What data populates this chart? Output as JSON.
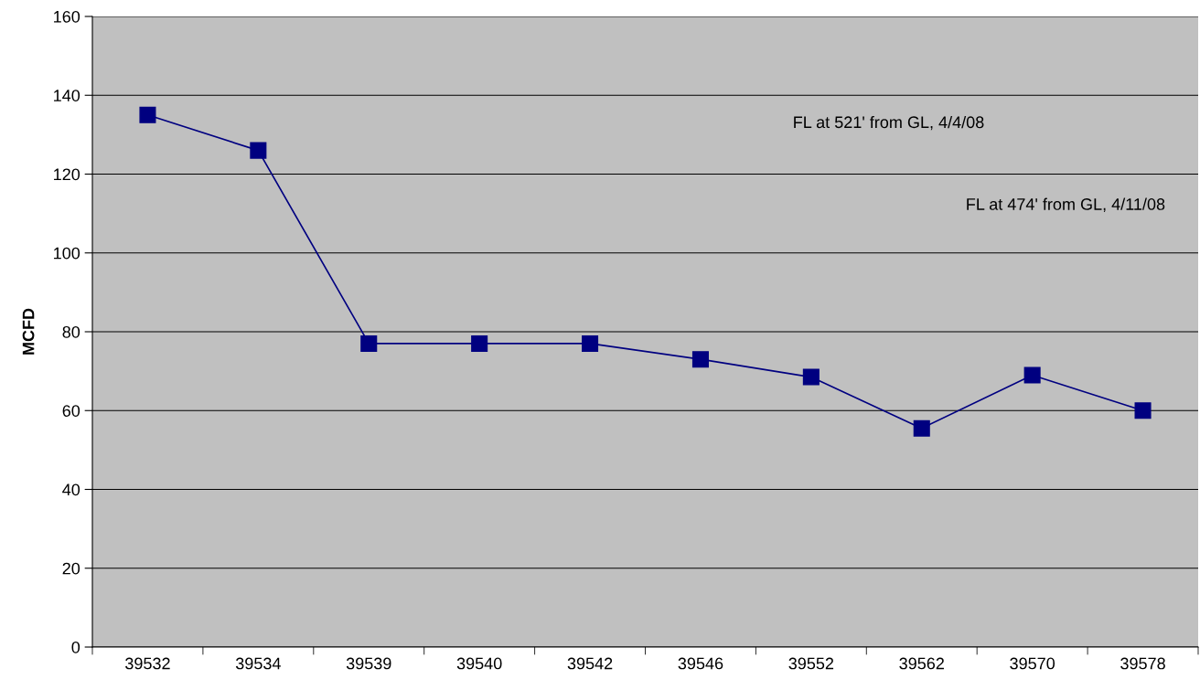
{
  "chart_data": {
    "type": "line",
    "ylabel": "MCFD",
    "categories": [
      "39532",
      "39534",
      "39539",
      "39540",
      "39542",
      "39546",
      "39552",
      "39562",
      "39570",
      "39578"
    ],
    "series": [
      {
        "color": "#000080",
        "values": [
          135,
          126,
          77,
          77,
          77,
          73,
          68.5,
          55.5,
          69,
          60
        ]
      }
    ],
    "ylim": [
      0,
      160
    ],
    "yticks": [
      0,
      20,
      40,
      60,
      80,
      100,
      120,
      140,
      160
    ],
    "grid": "y",
    "marker": "square",
    "line_style": "solid",
    "legend": false,
    "annotations": [
      "FL at 521' from GL, 4/4/08",
      "FL at 474' from GL, 4/11/08"
    ]
  }
}
